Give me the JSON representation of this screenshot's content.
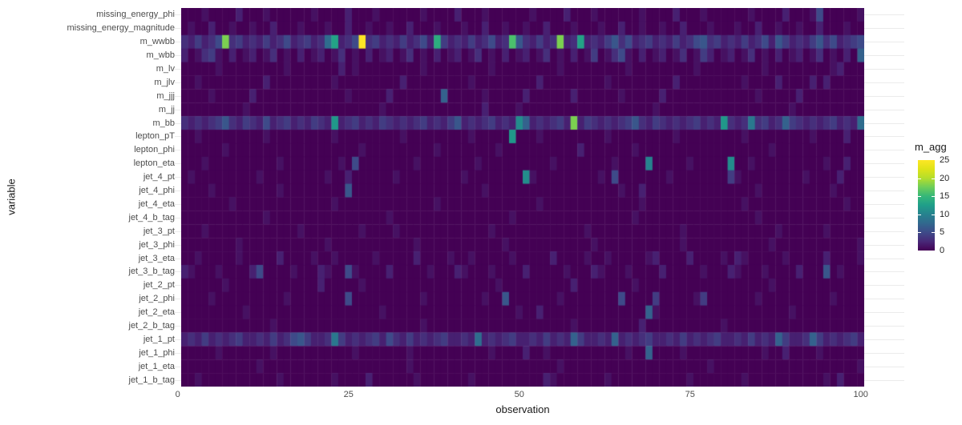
{
  "figure": {
    "xlabel": "observation",
    "ylabel": "variable",
    "legend_title": "m_agg"
  },
  "colors": {
    "background": "#ffffff",
    "gridline": "#ebebeb",
    "axis_text": "#4d4d4d",
    "axis_title": "#1a1a1a",
    "legend_text": "#262626",
    "viridis_stops": [
      "#440154",
      "#482878",
      "#3e4a89",
      "#31688e",
      "#26828e",
      "#1f9e89",
      "#35b779",
      "#6dcd59",
      "#b4de2c",
      "#dfe318",
      "#fde725"
    ]
  },
  "chart_data": {
    "type": "heatmap",
    "title": "",
    "xlabel": "observation",
    "ylabel": "variable",
    "legend_title": "m_agg",
    "colormap": "viridis",
    "x_range": [
      0,
      100
    ],
    "n_observations": 100,
    "x_ticks": [
      0,
      25,
      50,
      75,
      100
    ],
    "value_range": [
      0,
      25
    ],
    "legend_ticks": [
      0,
      5,
      10,
      15,
      20,
      25
    ],
    "legend_dash_ticks": [
      5,
      10,
      15,
      20
    ],
    "grid": "horizontal-major",
    "legend_position": "right",
    "note": "cell value v(row,col) = overrides[col] if present else base_cycle[col mod len(base_cycle)]; rows listed top to bottom; columns are observations 1..100",
    "rows": [
      {
        "name": "missing_energy_phi",
        "base_cycle": [
          0,
          0,
          0,
          1,
          0,
          0,
          0,
          0,
          2,
          0,
          0,
          0,
          1,
          0,
          0,
          0
        ],
        "overrides": {
          "93": 5
        }
      },
      {
        "name": "missing_energy_magnitude",
        "base_cycle": [
          0,
          1,
          0,
          0,
          2,
          0,
          0,
          1,
          0,
          0,
          1,
          0,
          0,
          2,
          0,
          0,
          0,
          1,
          0,
          0
        ],
        "overrides": {}
      },
      {
        "name": "m_wwbb",
        "base_cycle": [
          3,
          2,
          4,
          2,
          3,
          5,
          2,
          3,
          4,
          2
        ],
        "overrides": {
          "6": 18,
          "21": 8,
          "22": 13,
          "26": 25,
          "37": 14,
          "48": 16,
          "49": 6,
          "55": 18,
          "58": 13,
          "63": 6,
          "76": 6,
          "87": 6,
          "93": 6,
          "99": 5
        }
      },
      {
        "name": "m_wbb",
        "base_cycle": [
          2,
          0,
          1,
          3,
          0,
          1,
          0,
          2,
          0,
          1
        ],
        "overrides": {
          "4": 4,
          "60": 4,
          "64": 5,
          "76": 4,
          "99": 7
        }
      },
      {
        "name": "m_lv",
        "base_cycle": [
          0,
          0,
          0,
          0,
          0,
          1,
          0,
          0,
          0,
          0
        ],
        "overrides": {
          "23": 2,
          "96": 2
        }
      },
      {
        "name": "m_jlv",
        "base_cycle": [
          0,
          0,
          1,
          0,
          0,
          0,
          0,
          0,
          0,
          0,
          0,
          0,
          2,
          0,
          0,
          0,
          0,
          0,
          0,
          0
        ],
        "overrides": {
          "87": 2,
          "94": 2
        }
      },
      {
        "name": "m_jjj",
        "base_cycle": [
          0,
          0,
          0,
          0,
          1,
          0,
          0,
          0,
          0,
          0,
          2,
          0,
          0,
          0,
          0,
          0,
          0,
          0,
          0,
          0
        ],
        "overrides": {
          "38": 7,
          "57": 2
        }
      },
      {
        "name": "m_jj",
        "base_cycle": [
          0,
          0,
          0,
          0,
          0,
          0,
          0,
          0,
          0,
          1,
          0,
          0,
          0,
          0,
          0,
          0,
          0,
          0,
          0,
          0
        ],
        "overrides": {
          "44": 2
        }
      },
      {
        "name": "m_bb",
        "base_cycle": [
          3,
          2,
          3,
          2,
          3,
          4,
          2,
          3,
          2,
          4
        ],
        "overrides": {
          "6": 6,
          "12": 5,
          "22": 12,
          "40": 6,
          "49": 11,
          "50": 7,
          "57": 18,
          "66": 6,
          "79": 12,
          "83": 9,
          "88": 7,
          "99": 8
        }
      },
      {
        "name": "lepton_pT",
        "base_cycle": [
          0,
          0,
          1,
          0,
          0,
          0,
          0,
          0,
          0,
          0
        ],
        "overrides": {
          "48": 12,
          "97": 2
        }
      },
      {
        "name": "lepton_phi",
        "base_cycle": [
          0,
          0,
          0,
          0,
          0,
          0,
          1,
          0,
          0,
          0,
          0,
          0,
          0,
          0,
          0,
          0,
          0,
          0,
          0,
          0
        ],
        "overrides": {
          "37": 1,
          "58": 2
        }
      },
      {
        "name": "lepton_eta",
        "base_cycle": [
          0,
          0,
          0,
          1,
          0,
          0,
          0,
          0,
          0,
          0,
          0,
          0,
          0,
          0,
          1,
          0,
          0,
          0,
          0,
          0
        ],
        "overrides": {
          "25": 5,
          "68": 10,
          "80": 11,
          "97": 2
        }
      },
      {
        "name": "jet_4_pt",
        "base_cycle": [
          0,
          1,
          0,
          0,
          0,
          0,
          0,
          0,
          0,
          0
        ],
        "overrides": {
          "24": 2,
          "50": 11,
          "63": 5,
          "80": 4,
          "96": 2
        }
      },
      {
        "name": "jet_4_phi",
        "base_cycle": [
          0,
          0,
          0,
          0,
          1,
          0,
          0,
          0,
          0,
          0,
          0,
          0,
          0,
          0,
          0,
          0,
          0,
          0,
          0,
          0
        ],
        "overrides": {
          "14": 1,
          "24": 6,
          "67": 2,
          "95": 1
        }
      },
      {
        "name": "jet_4_eta",
        "base_cycle": [
          0,
          0,
          0,
          0,
          0,
          0,
          0,
          1,
          0,
          0,
          0,
          0,
          0,
          0,
          0
        ],
        "overrides": {}
      },
      {
        "name": "jet_4_b_tag",
        "base_cycle": [
          0,
          0,
          0,
          0,
          0,
          0,
          0,
          0,
          0,
          0,
          0,
          0,
          1,
          0,
          0,
          0,
          0,
          0
        ],
        "overrides": {}
      },
      {
        "name": "jet_3_pt",
        "base_cycle": [
          0,
          0,
          0,
          1,
          0,
          0,
          0,
          0,
          0,
          0,
          0,
          0,
          0,
          0
        ],
        "overrides": {
          "26": 1,
          "94": 1
        }
      },
      {
        "name": "jet_3_phi",
        "base_cycle": [
          0,
          0,
          0,
          0,
          0,
          0,
          0,
          0,
          1,
          0,
          0,
          0,
          0
        ],
        "overrides": {}
      },
      {
        "name": "jet_3_eta",
        "base_cycle": [
          0,
          0,
          1,
          0,
          0,
          0,
          0,
          0,
          1,
          0,
          0,
          0,
          0,
          0,
          2,
          0,
          0,
          0,
          0,
          1
        ],
        "overrides": {
          "69": 2,
          "81": 2
        }
      },
      {
        "name": "jet_3_b_tag",
        "base_cycle": [
          2,
          1,
          0,
          0,
          0,
          1,
          0,
          0,
          0,
          0,
          2,
          0,
          0,
          0,
          0,
          0,
          1,
          0,
          0,
          0
        ],
        "overrides": {
          "11": 5,
          "24": 5,
          "94": 6
        }
      },
      {
        "name": "jet_2_pt",
        "base_cycle": [
          0,
          0,
          0,
          0,
          0,
          0,
          1,
          0,
          0,
          0,
          0,
          0,
          0,
          0,
          0,
          0,
          0,
          0,
          0,
          0
        ],
        "overrides": {
          "20": 2,
          "57": 2
        }
      },
      {
        "name": "jet_2_phi",
        "base_cycle": [
          0,
          0,
          0,
          0,
          1,
          0,
          0,
          0,
          0,
          0,
          0,
          0,
          0,
          0,
          0,
          1,
          0,
          0,
          0,
          0
        ],
        "overrides": {
          "24": 5,
          "47": 6,
          "64": 5,
          "69": 4,
          "76": 4
        }
      },
      {
        "name": "jet_2_eta",
        "base_cycle": [
          0,
          0,
          0,
          0,
          0,
          0,
          0,
          0,
          0,
          1,
          0,
          0,
          0,
          0,
          0,
          0,
          0,
          0,
          0,
          0
        ],
        "overrides": {
          "52": 2,
          "68": 7
        }
      },
      {
        "name": "jet_2_b_tag",
        "base_cycle": [
          0,
          0,
          0,
          0,
          0,
          0,
          0,
          0,
          0,
          0,
          0,
          0,
          0,
          1,
          0,
          0,
          0,
          0,
          0,
          0,
          0,
          0
        ],
        "overrides": {
          "67": 2
        }
      },
      {
        "name": "jet_1_pt",
        "base_cycle": [
          2,
          3,
          2,
          4,
          2,
          3,
          2,
          3,
          4,
          2
        ],
        "overrides": {
          "16": 5,
          "17": 6,
          "22": 9,
          "30": 5,
          "43": 8,
          "57": 7,
          "63": 7,
          "87": 7,
          "92": 7
        }
      },
      {
        "name": "jet_1_phi",
        "base_cycle": [
          0,
          0,
          0,
          0,
          0,
          1,
          0,
          0,
          0,
          0,
          0,
          0,
          0,
          1,
          0,
          0,
          0,
          0,
          0,
          0
        ],
        "overrides": {
          "50": 2,
          "68": 7,
          "88": 2
        }
      },
      {
        "name": "jet_1_eta",
        "base_cycle": [
          0,
          0,
          0,
          0,
          0,
          0,
          0,
          0,
          0,
          0,
          0,
          1,
          0,
          0,
          0,
          0,
          0,
          0,
          0,
          0,
          0,
          0
        ],
        "overrides": {}
      },
      {
        "name": "jet_1_b_tag",
        "base_cycle": [
          0,
          0,
          1,
          0,
          0,
          0,
          0,
          0,
          0,
          0,
          0,
          0,
          0,
          0,
          1,
          0,
          0,
          0,
          0,
          0
        ],
        "overrides": {
          "27": 2,
          "53": 2,
          "96": 2
        }
      }
    ]
  }
}
